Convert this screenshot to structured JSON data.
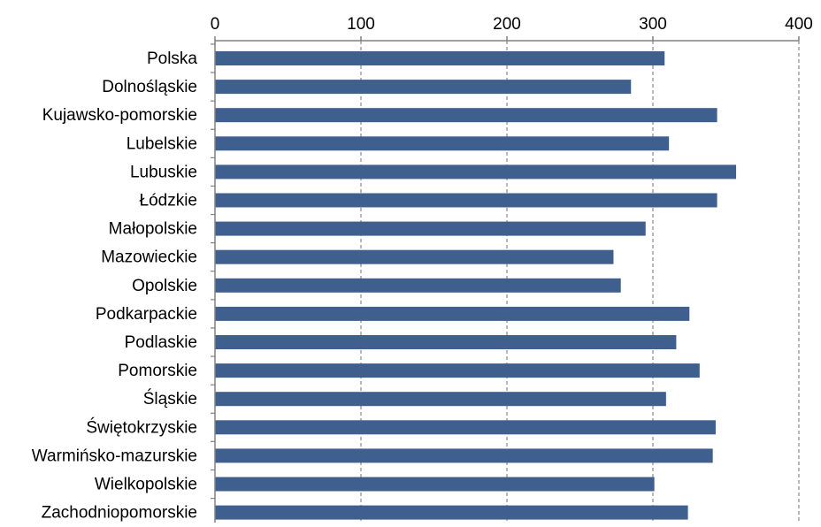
{
  "colors": {
    "bar": "#3f5f8f",
    "grid": "#8a8a8a",
    "axis": "#808080",
    "text": "#000000"
  },
  "chart_data": {
    "type": "bar",
    "orientation": "horizontal",
    "xlim": [
      0,
      400
    ],
    "ticks": [
      0,
      100,
      200,
      300,
      400
    ],
    "tick_labels": [
      "0",
      "100",
      "200",
      "300",
      "400"
    ],
    "grid": true,
    "categories": [
      "Polska",
      "Dolnośląskie",
      "Kujawsko-pomorskie",
      "Lubelskie",
      "Lubuskie",
      "Łódzkie",
      "Małopolskie",
      "Mazowieckie",
      "Opolskie",
      "Podkarpackie",
      "Podlaskie",
      "Pomorskie",
      "Śląskie",
      "Świętokrzyskie",
      "Warmińsko-mazurskie",
      "Wielkopolskie",
      "Zachodniopomorskie"
    ],
    "values": [
      308,
      285,
      344,
      311,
      357,
      344,
      295,
      273,
      278,
      325,
      316,
      332,
      309,
      343,
      341,
      301,
      324
    ]
  }
}
